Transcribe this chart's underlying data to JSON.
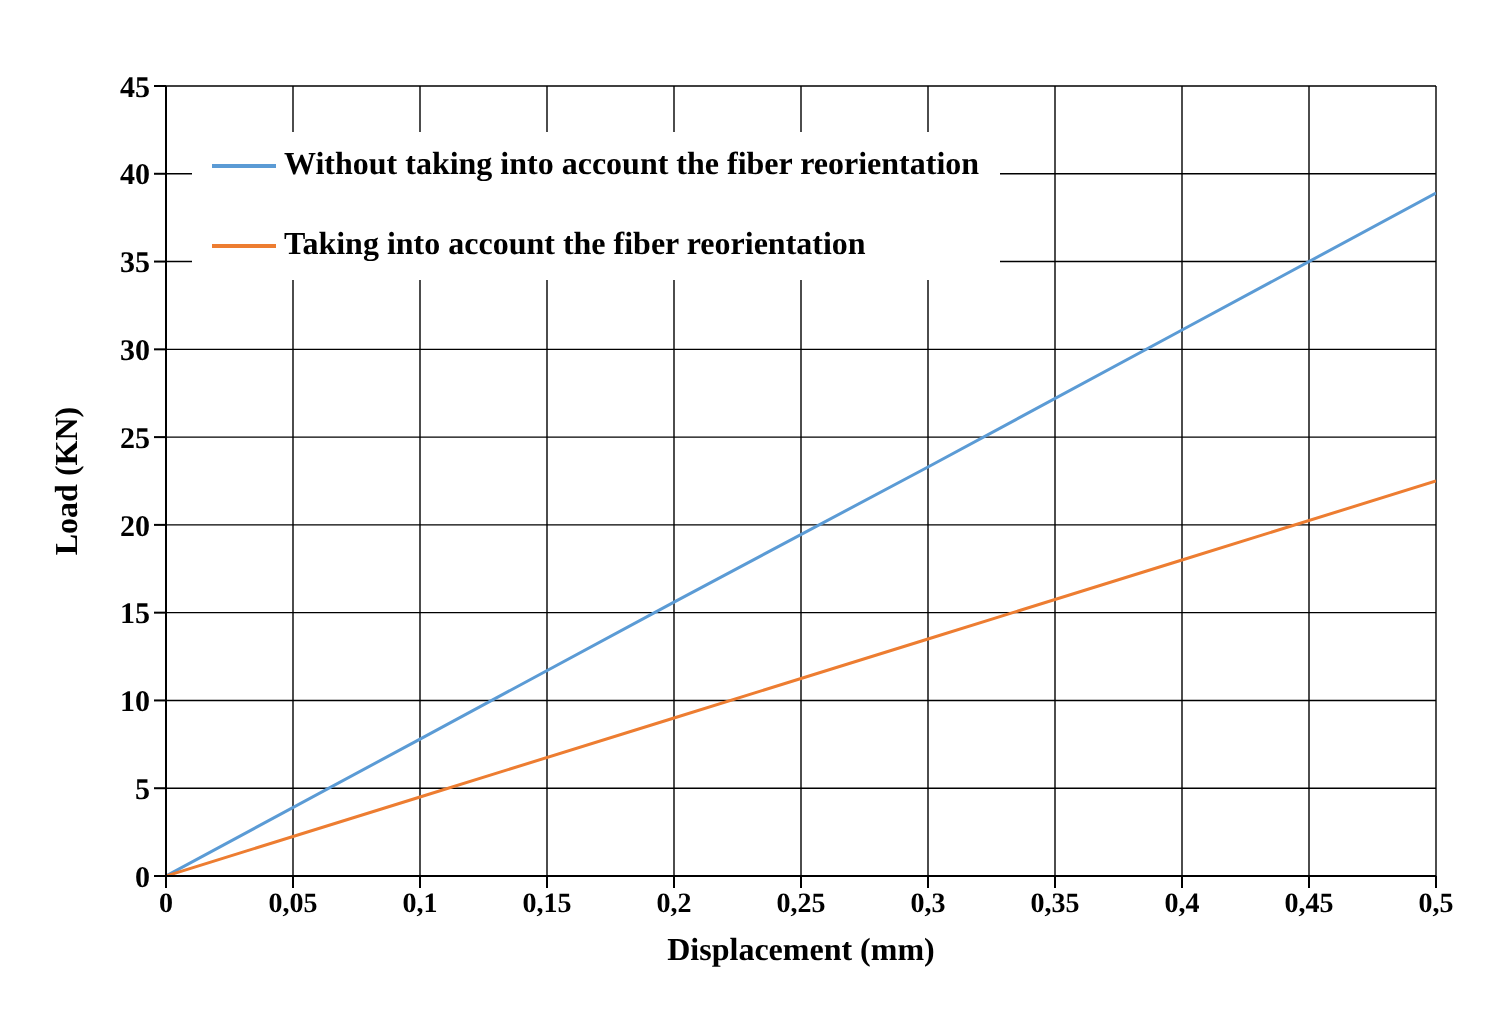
{
  "chart_data": {
    "type": "line",
    "xlabel": "Displacement (mm)",
    "ylabel": "Load (KN)",
    "series": [
      {
        "name": "Without taking into account the fiber reorientation",
        "color": "#5b9bd5",
        "x": [
          0,
          0.1,
          0.2,
          0.3,
          0.4,
          0.5
        ],
        "values": [
          0,
          7.8,
          15.6,
          23.3,
          31.1,
          38.9
        ]
      },
      {
        "name": "Taking into account the fiber reorientation",
        "color": "#ed7d31",
        "x": [
          0,
          0.1,
          0.2,
          0.3,
          0.4,
          0.5
        ],
        "values": [
          0,
          4.5,
          9.0,
          13.5,
          18.0,
          22.5
        ]
      }
    ],
    "xlim": [
      0,
      0.5
    ],
    "xticks": [
      0,
      {
        "value": 0.05,
        "label": "0,05"
      },
      {
        "value": 0.1,
        "label": "0,1"
      },
      {
        "value": 0.15,
        "label": "0,15"
      },
      {
        "value": 0.2,
        "label": "0,2"
      },
      {
        "value": 0.25,
        "label": "0,25"
      },
      {
        "value": 0.3,
        "label": "0,3"
      },
      {
        "value": 0.35,
        "label": "0,35"
      },
      {
        "value": 0.4,
        "label": "0,4"
      },
      {
        "value": 0.45,
        "label": "0,45"
      },
      {
        "value": 0.5,
        "label": "0,5"
      }
    ],
    "ylim": [
      0,
      45
    ],
    "yticks": [
      0,
      5,
      10,
      15,
      20,
      25,
      30,
      35,
      40,
      45
    ],
    "grid": true,
    "legend": "top left",
    "marker": "none",
    "line_style": "solid"
  }
}
